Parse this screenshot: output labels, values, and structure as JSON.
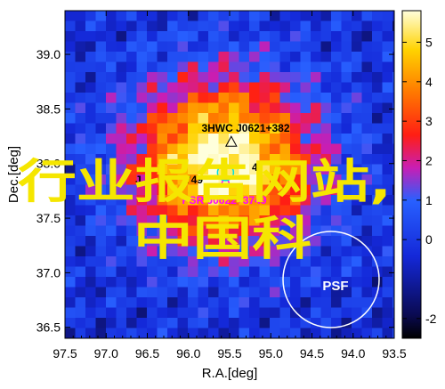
{
  "chart_data": {
    "type": "heatmap",
    "xlabel": "R.A.[deg]",
    "ylabel": "Dec.[deg]",
    "xlim": [
      97.5,
      93.5
    ],
    "ylim": [
      36.4,
      39.4
    ],
    "xticks": [
      "97.5",
      "97.0",
      "96.5",
      "96.0",
      "95.5",
      "95.0",
      "94.5",
      "94.0",
      "93.5"
    ],
    "yticks": [
      "36.5",
      "37.0",
      "37.5",
      "38.0",
      "38.5",
      "39.0"
    ],
    "colorbar": {
      "min": -2.5,
      "max": 5.8,
      "ticks": [
        "-2",
        "0",
        "1",
        "2",
        "3",
        "4",
        "5"
      ]
    },
    "peak": {
      "ra": 95.57,
      "dec": 38.02,
      "value": 5.8
    },
    "sources": [
      {
        "name": "3HWC J0621+382",
        "ra": 95.48,
        "dec": 38.2,
        "marker": "triangle",
        "color": "#000000"
      },
      {
        "name": "PSR J0622+3749",
        "ra": 95.55,
        "dec": 37.82,
        "marker": "circle",
        "color": "#ff00ff"
      }
    ],
    "psf": {
      "label": "PSF",
      "ra": 94.3,
      "dec": 36.95
    }
  },
  "watermark": {
    "line1": "行业报告网站,",
    "line2": "中国科"
  },
  "partial_labels": {
    "left": "J",
    "mid": "749",
    "right": "4"
  }
}
